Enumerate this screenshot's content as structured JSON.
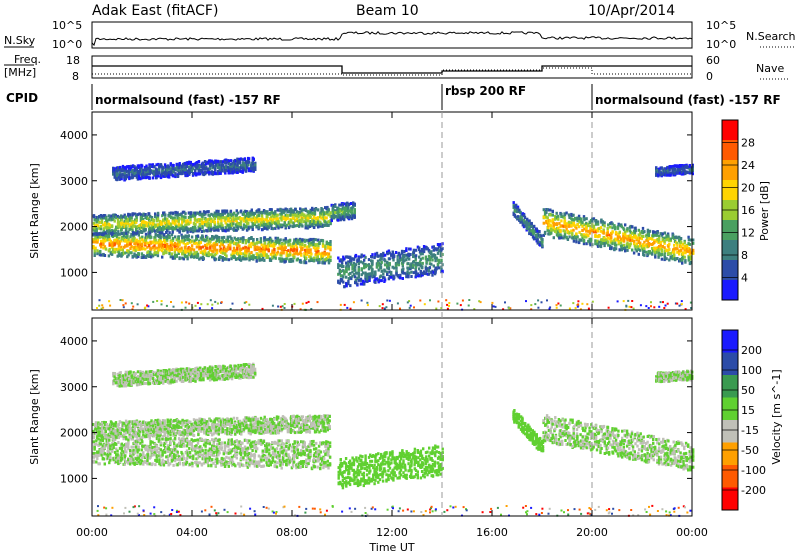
{
  "header": {
    "site": "Adak East (fitACF)",
    "beam": "Beam 10",
    "date": "10/Apr/2014"
  },
  "strips": {
    "nsky_label": "N.Sky",
    "nsearch_label": "N.Search",
    "nsky_ticks": [
      "10^5",
      "10^0"
    ],
    "nsearch_ticks": [
      "10^5",
      "10^0"
    ],
    "freq_label_1": "Freq.",
    "freq_label_2": "[MHz]",
    "freq_ticks": [
      "18",
      "8"
    ],
    "nave_label": "Nave",
    "nave_ticks": [
      "60",
      "0"
    ],
    "cpid_label": "CPID"
  },
  "cpid_segments": [
    {
      "label": "normalsound (fast) -157 RF",
      "start": 0,
      "end": 14
    },
    {
      "label": "rbsp 200 RF",
      "start": 14,
      "end": 20
    },
    {
      "label": "normalsound (fast) -157 RF",
      "start": 20,
      "end": 24
    }
  ],
  "axes": {
    "xlabel": "Time UT",
    "x_ticks": [
      "00:00",
      "04:00",
      "08:00",
      "12:00",
      "16:00",
      "20:00",
      "00:00"
    ],
    "ylabel": "Slant Range [km]",
    "y_ticks": [
      "4000",
      "3000",
      "2000",
      "1000"
    ]
  },
  "colorbars": {
    "power_title": "Power [dB]",
    "power_ticks": [
      "28",
      "24",
      "20",
      "16",
      "12",
      "8",
      "4"
    ],
    "velocity_title": "Velocity [m s^-1]",
    "velocity_ticks": [
      "200",
      "100",
      "50",
      "15",
      "-15",
      "-50",
      "-100",
      "-200"
    ]
  },
  "chart_data": [
    {
      "type": "heatmap",
      "name": "Power",
      "xlim": [
        0,
        24
      ],
      "ylim": [
        180,
        4500
      ],
      "colorscale": {
        "units": "dB",
        "min": 0,
        "max": 32,
        "colors": [
          "#1a1aff",
          "#2c4ca8",
          "#3d7f7f",
          "#4aa060",
          "#9acd32",
          "#ffd400",
          "#ffa000",
          "#ff5a00",
          "#ff0000"
        ]
      },
      "bands": [
        {
          "x": [
            0,
            9.5
          ],
          "y_center_start": 1620,
          "y_center_end": 1450,
          "half_width": 260,
          "peak_db": 26
        },
        {
          "x": [
            0,
            9.5
          ],
          "y_center_start": 2030,
          "y_center_end": 2200,
          "half_width": 220,
          "peak_db": 20
        },
        {
          "x": [
            0.8,
            6.5
          ],
          "y_center_start": 3150,
          "y_center_end": 3350,
          "half_width": 150,
          "peak_db": 8
        },
        {
          "x": [
            9.8,
            14
          ],
          "y_center_start": 1000,
          "y_center_end": 1300,
          "half_width": 330,
          "peak_db": 12
        },
        {
          "x": [
            9.5,
            10.5
          ],
          "y_center_start": 2300,
          "y_center_end": 2350,
          "half_width": 180,
          "peak_db": 14
        },
        {
          "x": [
            16.8,
            18
          ],
          "y_center_start": 2400,
          "y_center_end": 1650,
          "half_width": 150,
          "peak_db": 12
        },
        {
          "x": [
            18,
            24
          ],
          "y_center_start": 2100,
          "y_center_end": 1450,
          "half_width": 300,
          "peak_db": 24
        },
        {
          "x": [
            22.5,
            24
          ],
          "y_center_start": 3200,
          "y_center_end": 3250,
          "half_width": 100,
          "peak_db": 8
        }
      ]
    },
    {
      "type": "heatmap",
      "name": "Velocity",
      "xlim": [
        0,
        24
      ],
      "ylim": [
        180,
        4500
      ],
      "colorscale": {
        "units": "m/s",
        "min": -250,
        "max": 250,
        "colors": [
          "#ff0000",
          "#ff5a00",
          "#ffa000",
          "#c0c0b8",
          "#60d030",
          "#3a9a50",
          "#2c4ca8",
          "#1a1aff"
        ]
      },
      "bands": [
        {
          "x": [
            0,
            9.5
          ],
          "y_center_start": 1620,
          "y_center_end": 1500,
          "half_width": 300,
          "velocity": 0
        },
        {
          "x": [
            0,
            9.5
          ],
          "y_center_start": 2050,
          "y_center_end": 2200,
          "half_width": 180,
          "velocity": 0
        },
        {
          "x": [
            0.8,
            6.5
          ],
          "y_center_start": 3150,
          "y_center_end": 3350,
          "half_width": 150,
          "velocity": 0
        },
        {
          "x": [
            9.8,
            14
          ],
          "y_center_start": 1100,
          "y_center_end": 1400,
          "half_width": 330,
          "velocity": 40
        },
        {
          "x": [
            16.8,
            18
          ],
          "y_center_start": 2400,
          "y_center_end": 1650,
          "half_width": 150,
          "velocity": 40
        },
        {
          "x": [
            18,
            24
          ],
          "y_center_start": 2100,
          "y_center_end": 1450,
          "half_width": 300,
          "velocity": 0
        },
        {
          "x": [
            22.5,
            24
          ],
          "y_center_start": 3200,
          "y_center_end": 3250,
          "half_width": 100,
          "velocity": 0
        }
      ]
    }
  ]
}
